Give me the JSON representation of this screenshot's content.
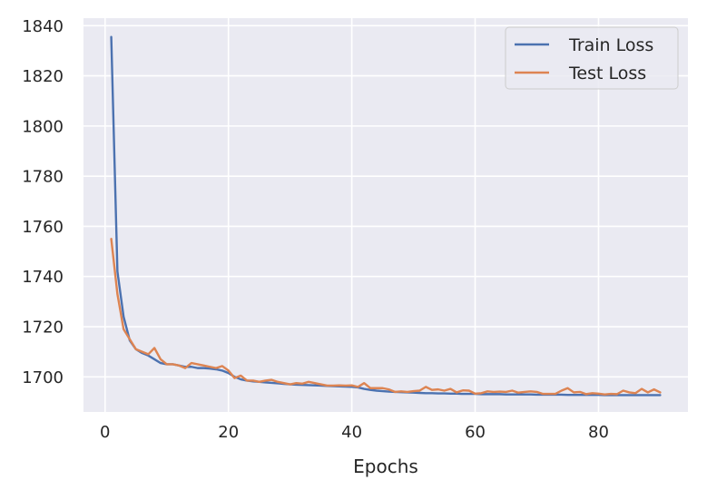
{
  "chart_data": {
    "type": "line",
    "xlabel": "Epochs",
    "ylabel": "",
    "xlim": [
      -3.5,
      94.5
    ],
    "ylim": [
      1686,
      1843
    ],
    "xticks": [
      0,
      20,
      40,
      60,
      80
    ],
    "yticks": [
      1700,
      1720,
      1740,
      1760,
      1780,
      1800,
      1820,
      1840
    ],
    "grid": true,
    "legend_position": "top-right",
    "background_color": "#EAEAF2",
    "series": [
      {
        "name": "Train Loss",
        "color": "#4C72B0",
        "x": [
          1,
          2,
          3,
          4,
          5,
          6,
          7,
          8,
          9,
          10,
          11,
          12,
          13,
          14,
          15,
          16,
          17,
          18,
          19,
          20,
          21,
          22,
          23,
          24,
          25,
          26,
          27,
          28,
          29,
          30,
          31,
          32,
          33,
          34,
          35,
          36,
          37,
          38,
          39,
          40,
          41,
          42,
          43,
          44,
          45,
          46,
          47,
          48,
          49,
          50,
          51,
          52,
          53,
          54,
          55,
          56,
          57,
          58,
          59,
          60,
          61,
          62,
          63,
          64,
          65,
          66,
          67,
          68,
          69,
          70,
          71,
          72,
          73,
          74,
          75,
          76,
          77,
          78,
          79,
          80,
          81,
          82,
          83,
          84,
          85,
          86,
          87,
          88,
          89,
          90
        ],
        "values": [
          1835.5,
          1742,
          1724,
          1714.5,
          1711,
          1709.5,
          1708.5,
          1707,
          1705.5,
          1705,
          1705,
          1704.5,
          1704,
          1704,
          1703.5,
          1703.5,
          1703.3,
          1703,
          1702.5,
          1701.5,
          1700,
          1699,
          1698.5,
          1698.2,
          1698,
          1697.8,
          1697.6,
          1697.4,
          1697.2,
          1697,
          1696.9,
          1696.8,
          1696.7,
          1696.6,
          1696.5,
          1696.4,
          1696.3,
          1696.2,
          1696.1,
          1696,
          1695.8,
          1695.2,
          1694.8,
          1694.5,
          1694.3,
          1694.1,
          1694,
          1693.9,
          1693.8,
          1693.7,
          1693.6,
          1693.5,
          1693.5,
          1693.4,
          1693.4,
          1693.3,
          1693.3,
          1693.2,
          1693.2,
          1693.2,
          1693.1,
          1693.1,
          1693.1,
          1693.1,
          1693,
          1693,
          1693,
          1693,
          1693,
          1692.9,
          1692.9,
          1692.9,
          1692.9,
          1692.9,
          1692.8,
          1692.8,
          1692.8,
          1692.8,
          1692.8,
          1692.8,
          1692.7,
          1692.7,
          1692.7,
          1692.7,
          1692.7,
          1692.7,
          1692.7,
          1692.7,
          1692.7,
          1692.7
        ]
      },
      {
        "name": "Test Loss",
        "color": "#DD8452",
        "x": [
          1,
          2,
          3,
          4,
          5,
          6,
          7,
          8,
          9,
          10,
          11,
          12,
          13,
          14,
          15,
          16,
          17,
          18,
          19,
          20,
          21,
          22,
          23,
          24,
          25,
          26,
          27,
          28,
          29,
          30,
          31,
          32,
          33,
          34,
          35,
          36,
          37,
          38,
          39,
          40,
          41,
          42,
          43,
          44,
          45,
          46,
          47,
          48,
          49,
          50,
          51,
          52,
          53,
          54,
          55,
          56,
          57,
          58,
          59,
          60,
          61,
          62,
          63,
          64,
          65,
          66,
          67,
          68,
          69,
          70,
          71,
          72,
          73,
          74,
          75,
          76,
          77,
          78,
          79,
          80,
          81,
          82,
          83,
          84,
          85,
          86,
          87,
          88,
          89,
          90
        ],
        "values": [
          1755,
          1733,
          1719,
          1715,
          1711,
          1710,
          1709,
          1711.5,
          1707,
          1705,
          1705,
          1704.5,
          1703.5,
          1705.5,
          1705,
          1704.5,
          1704,
          1703.5,
          1704.3,
          1702.5,
          1699.5,
          1700.5,
          1698.5,
          1698.5,
          1698,
          1698.5,
          1698.8,
          1698,
          1697.5,
          1697,
          1697.5,
          1697.3,
          1698,
          1697.5,
          1697,
          1696.5,
          1696.5,
          1696.6,
          1696.5,
          1696.6,
          1696,
          1697.5,
          1695.5,
          1695.5,
          1695.5,
          1695,
          1694,
          1694.2,
          1694,
          1694.3,
          1694.5,
          1696,
          1694.8,
          1695,
          1694.5,
          1695.2,
          1693.8,
          1694.6,
          1694.5,
          1693.3,
          1693.5,
          1694.2,
          1694,
          1694.1,
          1694,
          1694.5,
          1693.7,
          1694,
          1694.2,
          1694,
          1693.2,
          1693.2,
          1693.2,
          1694.5,
          1695.5,
          1693.8,
          1694,
          1693.1,
          1693.5,
          1693.3,
          1693,
          1693.2,
          1693.1,
          1694.5,
          1693.8,
          1693.5,
          1695.2,
          1693.8,
          1695,
          1693.8
        ]
      }
    ]
  }
}
